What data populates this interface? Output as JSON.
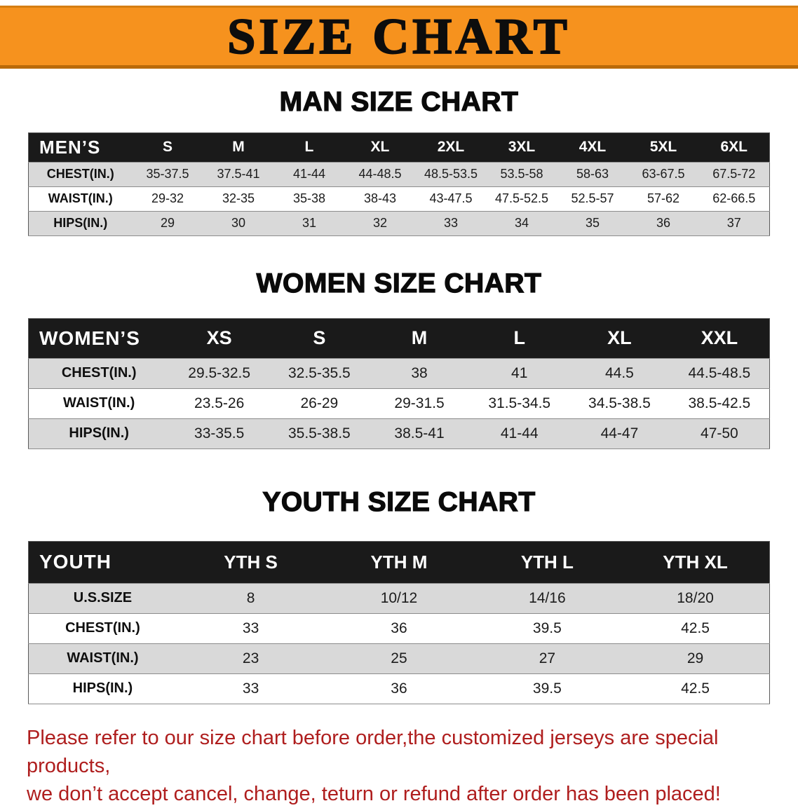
{
  "banner": {
    "title": "SIZE CHART"
  },
  "colors": {
    "banner_bg": "#F6921E",
    "banner_edge": "#D57E12",
    "banner_edge_dark": "#BA6A08",
    "header_bg": "#1A1A1A",
    "row_alt": "#D9D9D9",
    "footer_text": "#AF1E1E"
  },
  "men": {
    "heading": "MAN SIZE CHART",
    "table": {
      "header": [
        "MEN’S",
        "S",
        "M",
        "L",
        "XL",
        "2XL",
        "3XL",
        "4XL",
        "5XL",
        "6XL"
      ],
      "rows": [
        [
          "CHEST(IN.)",
          "35-37.5",
          "37.5-41",
          "41-44",
          "44-48.5",
          "48.5-53.5",
          "53.5-58",
          "58-63",
          "63-67.5",
          "67.5-72"
        ],
        [
          "WAIST(IN.)",
          "29-32",
          "32-35",
          "35-38",
          "38-43",
          "43-47.5",
          "47.5-52.5",
          "52.5-57",
          "57-62",
          "62-66.5"
        ],
        [
          "HIPS(IN.)",
          "29",
          "30",
          "31",
          "32",
          "33",
          "34",
          "35",
          "36",
          "37"
        ]
      ]
    }
  },
  "women": {
    "heading": "WOMEN SIZE CHART",
    "table": {
      "header": [
        "WOMEN’S",
        "XS",
        "S",
        "M",
        "L",
        "XL",
        "XXL"
      ],
      "rows": [
        [
          "CHEST(IN.)",
          "29.5-32.5",
          "32.5-35.5",
          "38",
          "41",
          "44.5",
          "44.5-48.5"
        ],
        [
          "WAIST(IN.)",
          "23.5-26",
          "26-29",
          "29-31.5",
          "31.5-34.5",
          "34.5-38.5",
          "38.5-42.5"
        ],
        [
          "HIPS(IN.)",
          "33-35.5",
          "35.5-38.5",
          "38.5-41",
          "41-44",
          "44-47",
          "47-50"
        ]
      ]
    }
  },
  "youth": {
    "heading": "YOUTH SIZE CHART",
    "table": {
      "header": [
        "YOUTH",
        "YTH S",
        "YTH M",
        "YTH L",
        "YTH XL"
      ],
      "rows": [
        [
          "U.S.SIZE",
          "8",
          "10/12",
          "14/16",
          "18/20"
        ],
        [
          "CHEST(IN.)",
          "33",
          "36",
          "39.5",
          "42.5"
        ],
        [
          "WAIST(IN.)",
          "23",
          "25",
          "27",
          "29"
        ],
        [
          "HIPS(IN.)",
          "33",
          "36",
          "39.5",
          "42.5"
        ]
      ]
    }
  },
  "footer": {
    "line1": "Please refer to our size chart before order,the customized jerseys are special products,",
    "line2": "we don’t accept cancel, change, teturn or refund after order has been placed!"
  }
}
